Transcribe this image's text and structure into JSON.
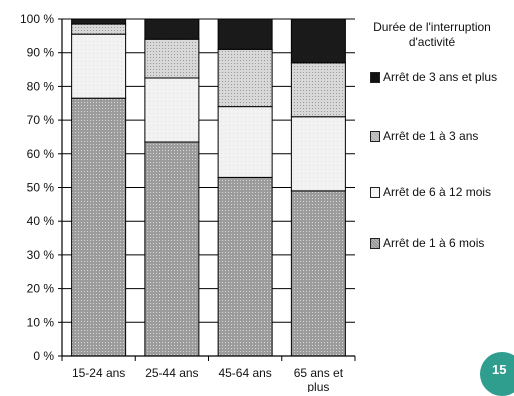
{
  "chart_data": {
    "type": "bar",
    "stacked": true,
    "categories": [
      "15-24 ans",
      "25-44 ans",
      "45-64 ans",
      "65 ans et plus"
    ],
    "series": [
      {
        "name": "Arrêt de 1 à 6 mois",
        "values": [
          76.5,
          63.5,
          53,
          49
        ],
        "color": "#a3a3a3",
        "pattern": "dotted-gray"
      },
      {
        "name": "Arrêt de 6 à 12 mois",
        "values": [
          19,
          19,
          21,
          22
        ],
        "color": "#f0f0f0",
        "pattern": "light"
      },
      {
        "name": "Arrêt de 1 à 3 ans",
        "values": [
          3,
          11.5,
          17,
          16
        ],
        "color": "#cfcfcf",
        "pattern": "fine-dots"
      },
      {
        "name": "Arrêt de 3 ans et plus",
        "values": [
          1.5,
          6,
          9,
          13
        ],
        "color": "#1a1a1a",
        "pattern": "solid"
      }
    ],
    "ylim": [
      0,
      100
    ],
    "yticks": [
      "0 %",
      "10 %",
      "20 %",
      "30 %",
      "40 %",
      "50 %",
      "60 %",
      "70 %",
      "80 %",
      "90 %",
      "100 %"
    ],
    "grid": true,
    "legend_title": "Durée de l'interruption d'activité",
    "legend_position": "right",
    "legend_order": [
      3,
      2,
      1,
      0
    ]
  },
  "page_number": "15"
}
